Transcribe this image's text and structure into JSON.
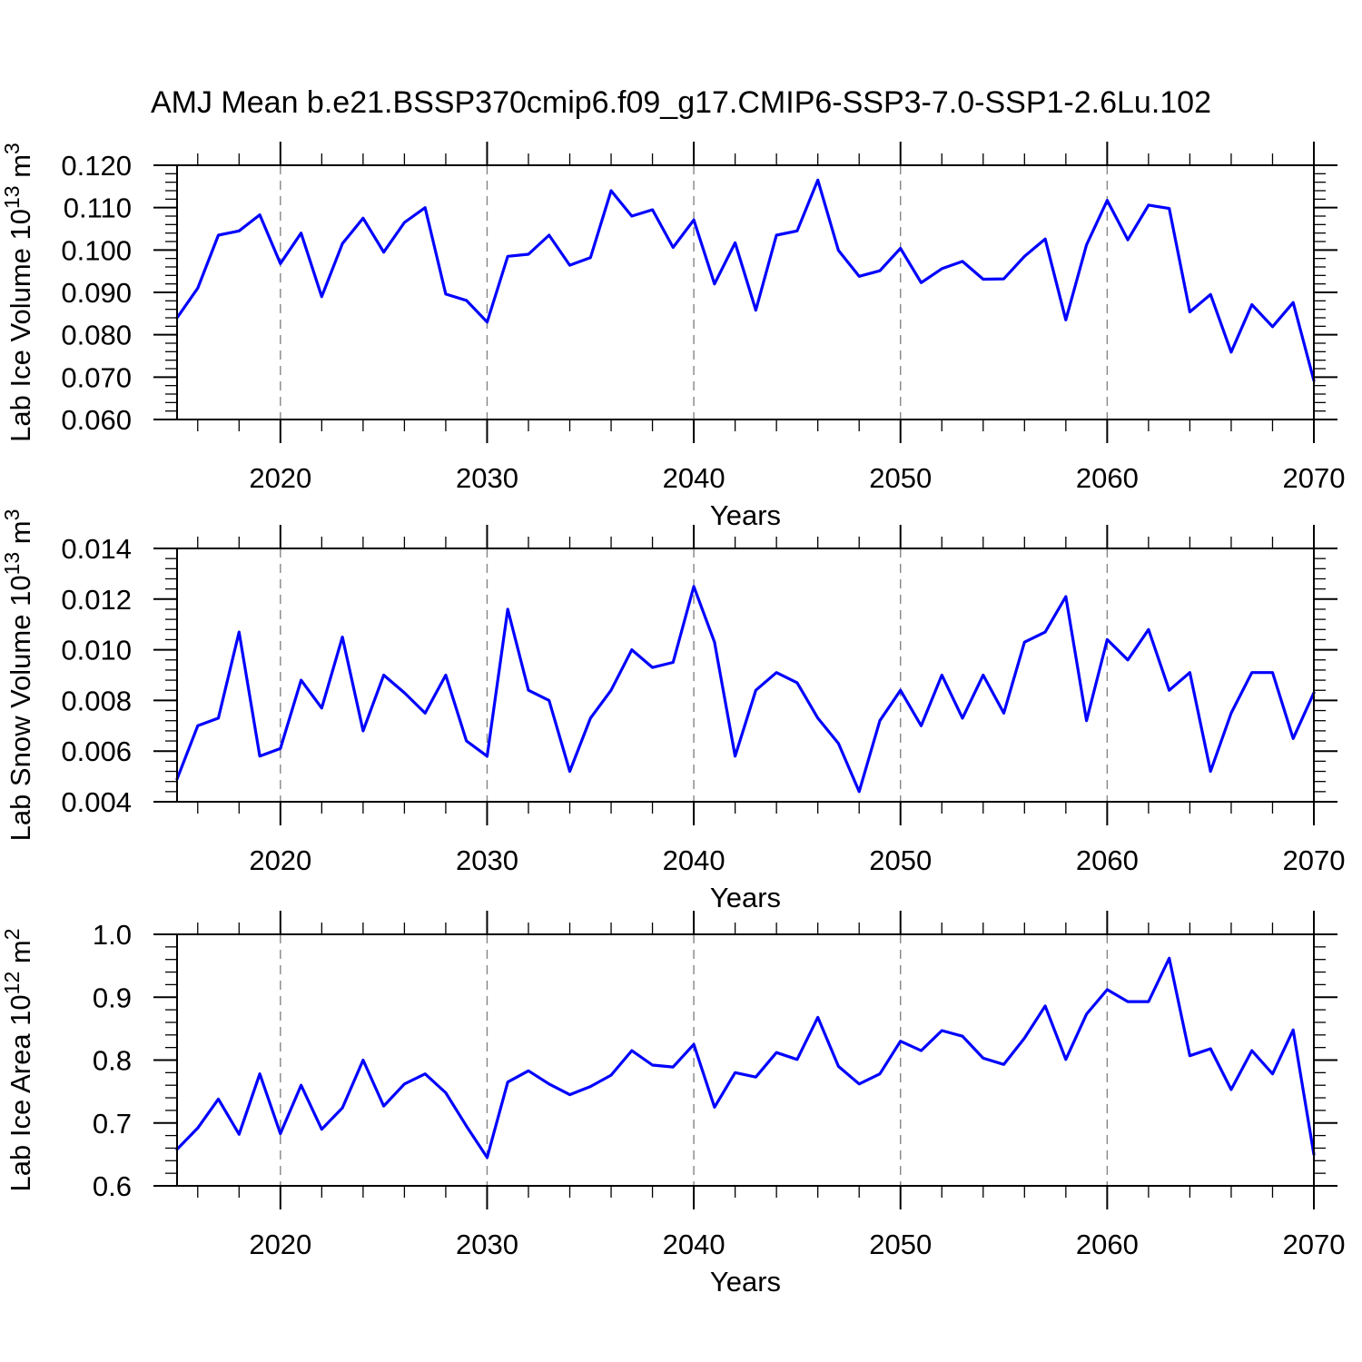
{
  "title": "AMJ Mean b.e21.BSSP370cmip6.f09_g17.CMIP6-SSP3-7.0-SSP1-2.6Lu.102",
  "colors": {
    "line": "#0000ff",
    "grid": "#858585",
    "frame": "#000000",
    "text": "#000000",
    "background": "#ffffff"
  },
  "x_axis": {
    "label": "Years",
    "min": 2015,
    "max": 2070,
    "major_ticks": [
      2020,
      2030,
      2040,
      2050,
      2060,
      2070
    ],
    "major_tick_labels": [
      "2020",
      "2030",
      "2040",
      "2050",
      "2060",
      "2070"
    ],
    "minor_step": 2,
    "gridline_years": [
      2020,
      2030,
      2040,
      2050,
      2060
    ],
    "years": [
      2015,
      2016,
      2017,
      2018,
      2019,
      2020,
      2021,
      2022,
      2023,
      2024,
      2025,
      2026,
      2027,
      2028,
      2029,
      2030,
      2031,
      2032,
      2033,
      2034,
      2035,
      2036,
      2037,
      2038,
      2039,
      2040,
      2041,
      2042,
      2043,
      2044,
      2045,
      2046,
      2047,
      2048,
      2049,
      2050,
      2051,
      2052,
      2053,
      2054,
      2055,
      2056,
      2057,
      2058,
      2059,
      2060,
      2061,
      2062,
      2063,
      2064,
      2065,
      2066,
      2067,
      2068,
      2069,
      2070
    ]
  },
  "chart_data": [
    {
      "type": "line",
      "name": "lab-ice-volume",
      "ylabel_parts": [
        {
          "text": "Lab Ice Volume 10",
          "sup": false
        },
        {
          "text": "13",
          "sup": true
        },
        {
          "text": " m",
          "sup": false
        },
        {
          "text": "3",
          "sup": true
        }
      ],
      "xlabel": "Years",
      "ylim": [
        0.06,
        0.12
      ],
      "ytick_labels": [
        "0.060",
        "0.070",
        "0.080",
        "0.090",
        "0.100",
        "0.110",
        "0.120"
      ],
      "ytick_minor_step": 0.002,
      "values": [
        0.084,
        0.091,
        0.1035,
        0.1045,
        0.1083,
        0.0968,
        0.104,
        0.089,
        0.1015,
        0.1075,
        0.0995,
        0.1065,
        0.11,
        0.0896,
        0.0881,
        0.083,
        0.0985,
        0.099,
        0.1035,
        0.0964,
        0.0982,
        0.114,
        0.108,
        0.1095,
        0.1006,
        0.1071,
        0.092,
        0.1017,
        0.0858,
        0.1035,
        0.1045,
        0.1165,
        0.0999,
        0.0938,
        0.0951,
        0.1004,
        0.0923,
        0.0956,
        0.0973,
        0.0931,
        0.0932,
        0.0985,
        0.1026,
        0.0835,
        0.1012,
        0.1117,
        0.1024,
        0.1106,
        0.1098,
        0.0854,
        0.0895,
        0.0759,
        0.0871,
        0.0819,
        0.0876,
        0.0692
      ]
    },
    {
      "type": "line",
      "name": "lab-snow-volume",
      "ylabel_parts": [
        {
          "text": "Lab Snow Volume 10",
          "sup": false
        },
        {
          "text": "13",
          "sup": true
        },
        {
          "text": " m",
          "sup": false
        },
        {
          "text": "3",
          "sup": true
        }
      ],
      "xlabel": "Years",
      "ylim": [
        0.004,
        0.014
      ],
      "ytick_labels": [
        "0.004",
        "0.006",
        "0.008",
        "0.010",
        "0.012",
        "0.014"
      ],
      "ytick_minor_step": 0.0004,
      "values": [
        0.0049,
        0.007,
        0.0073,
        0.0107,
        0.0058,
        0.0061,
        0.0088,
        0.0077,
        0.0105,
        0.0068,
        0.009,
        0.0083,
        0.0075,
        0.009,
        0.0064,
        0.0058,
        0.0116,
        0.0084,
        0.008,
        0.0052,
        0.0073,
        0.0084,
        0.01,
        0.0093,
        0.0095,
        0.0125,
        0.0103,
        0.0058,
        0.0084,
        0.0091,
        0.0087,
        0.0073,
        0.0063,
        0.0044,
        0.0072,
        0.0084,
        0.007,
        0.009,
        0.0073,
        0.009,
        0.0075,
        0.0103,
        0.0107,
        0.0121,
        0.0072,
        0.0104,
        0.0096,
        0.0108,
        0.0084,
        0.0091,
        0.0052,
        0.0075,
        0.0091,
        0.0091,
        0.0065,
        0.0083
      ]
    },
    {
      "type": "line",
      "name": "lab-ice-area",
      "ylabel_parts": [
        {
          "text": "Lab Ice Area 10",
          "sup": false
        },
        {
          "text": "12",
          "sup": true
        },
        {
          "text": " m",
          "sup": false
        },
        {
          "text": "2",
          "sup": true
        }
      ],
      "xlabel": "Years",
      "ylim": [
        0.6,
        1.0
      ],
      "ytick_labels": [
        "0.6",
        "0.7",
        "0.8",
        "0.9",
        "1.0"
      ],
      "ytick_minor_step": 0.02,
      "values": [
        0.658,
        0.692,
        0.738,
        0.682,
        0.778,
        0.683,
        0.76,
        0.69,
        0.724,
        0.8,
        0.727,
        0.762,
        0.778,
        0.748,
        0.695,
        0.645,
        0.765,
        0.783,
        0.762,
        0.745,
        0.758,
        0.776,
        0.815,
        0.792,
        0.789,
        0.825,
        0.725,
        0.78,
        0.773,
        0.812,
        0.801,
        0.868,
        0.79,
        0.762,
        0.778,
        0.83,
        0.815,
        0.847,
        0.838,
        0.803,
        0.793,
        0.835,
        0.886,
        0.801,
        0.873,
        0.912,
        0.893,
        0.893,
        0.962,
        0.807,
        0.818,
        0.753,
        0.815,
        0.778,
        0.848,
        0.65
      ]
    }
  ]
}
